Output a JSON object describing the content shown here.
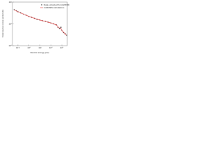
{
  "chart_data": {
    "type": "scatter",
    "x_label": "Neutron energy (eV)",
    "y_label": "Total neutron cross section (b)",
    "xlim": [
      0.001,
      10000000
    ],
    "ylim": [
      1,
      100
    ],
    "log_x": true,
    "log_y": true,
    "xticks": [
      {
        "value": 0.01,
        "label": "10⁻²"
      },
      {
        "value": 1,
        "label": "10⁰"
      },
      {
        "value": 100,
        "label": "10²"
      },
      {
        "value": 10000,
        "label": "10⁴"
      },
      {
        "value": 1000000,
        "label": "10⁶"
      }
    ],
    "yticks": [
      {
        "value": 1,
        "label": "10⁰"
      },
      {
        "value": 10,
        "label": "10¹"
      },
      {
        "value": 100,
        "label": "10²"
      }
    ],
    "legend": "upper right",
    "series": [
      {
        "name": "Data extracted from EXFOR",
        "color": "#000000",
        "mark": "points",
        "x": [
          0.002,
          0.005,
          0.01,
          0.03,
          0.1,
          0.3,
          1,
          3,
          10,
          30,
          100,
          300,
          1000,
          3000,
          10000,
          30000,
          100000,
          200000,
          400000,
          700000,
          1000000,
          2000000,
          4000000,
          7000000
        ],
        "values": [
          45,
          40,
          36,
          32,
          28,
          25,
          22,
          20,
          18,
          16,
          15,
          14,
          13,
          12,
          11,
          10,
          9,
          7,
          6,
          7,
          5,
          4,
          3.5,
          3
        ]
      },
      {
        "name": "CARMEN calculations",
        "color": "#e02020",
        "mark": "line",
        "x": [
          0.002,
          0.01,
          0.1,
          1,
          10,
          100,
          1000,
          10000,
          100000,
          300000,
          600000,
          1000000,
          3000000,
          7000000
        ],
        "values": [
          44,
          36,
          28,
          22,
          18,
          15,
          13,
          11,
          9,
          6.5,
          6.5,
          5,
          3.8,
          3
        ]
      }
    ]
  }
}
